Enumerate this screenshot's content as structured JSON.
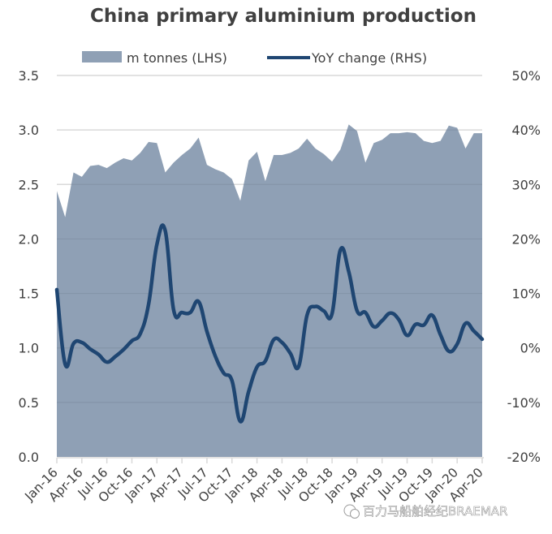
{
  "chart_data": {
    "type": "area+line",
    "title": "China primary aluminium production",
    "legend": {
      "placement": "top-center",
      "entries": [
        {
          "label": "m tonnes (LHS)",
          "kind": "area"
        },
        {
          "label": "YoY change (RHS)",
          "kind": "line"
        }
      ]
    },
    "colors": {
      "area": "#8fa0b5",
      "line": "#1f4672",
      "grid": "#d9d9d9",
      "axis_text": "#404040"
    },
    "left_axis": {
      "label": "m tonnes",
      "ylim": [
        0,
        3.5
      ],
      "ticks": [
        "0.0",
        "0.5",
        "1.0",
        "1.5",
        "2.0",
        "2.5",
        "3.0",
        "3.5"
      ],
      "tick_values": [
        0,
        0.5,
        1.0,
        1.5,
        2.0,
        2.5,
        3.0,
        3.5
      ]
    },
    "right_axis": {
      "label": "YoY change",
      "ylim": [
        -20,
        50
      ],
      "ticks": [
        "-20%",
        "-10%",
        "0%",
        "10%",
        "20%",
        "30%",
        "40%",
        "50%"
      ],
      "tick_values": [
        -20,
        -10,
        0,
        10,
        20,
        30,
        40,
        50
      ]
    },
    "x_tick_labels": [
      "Jan-16",
      "Apr-16",
      "Jul-16",
      "Oct-16",
      "Jan-17",
      "Apr-17",
      "Jul-17",
      "Oct-17",
      "Jan-18",
      "Apr-18",
      "Jul-18",
      "Oct-18",
      "Jan-19",
      "Apr-19",
      "Jul-19",
      "Oct-19",
      "Jan-20",
      "Apr-20"
    ],
    "grid": true,
    "series": [
      {
        "name": "m tonnes (LHS)",
        "axis": "left",
        "type": "area",
        "values": [
          2.44,
          2.2,
          2.61,
          2.57,
          2.67,
          2.68,
          2.65,
          2.7,
          2.74,
          2.72,
          2.79,
          2.89,
          2.88,
          2.61,
          2.7,
          2.77,
          2.83,
          2.93,
          2.68,
          2.64,
          2.61,
          2.55,
          2.35,
          2.72,
          2.8,
          2.53,
          2.77,
          2.77,
          2.79,
          2.83,
          2.92,
          2.83,
          2.78,
          2.71,
          2.82,
          3.05,
          2.99,
          2.7,
          2.88,
          2.91,
          2.97,
          2.97,
          2.98,
          2.97,
          2.9,
          2.88,
          2.9,
          3.04,
          3.02,
          2.83,
          2.97,
          2.97
        ]
      },
      {
        "name": "YoY change (RHS)",
        "axis": "right",
        "type": "line",
        "values": [
          10.7,
          -3.0,
          0.8,
          1.0,
          -0.2,
          -1.2,
          -2.6,
          -1.6,
          -0.3,
          1.3,
          2.6,
          8.0,
          19.0,
          21.5,
          7.0,
          6.5,
          6.5,
          8.5,
          3.0,
          -1.5,
          -4.6,
          -6.0,
          -13.5,
          -8.0,
          -3.5,
          -2.4,
          1.5,
          1.0,
          -1.0,
          -3.4,
          6.0,
          7.6,
          6.8,
          6.3,
          18.0,
          14.0,
          6.8,
          6.5,
          3.9,
          5.0,
          6.4,
          5.2,
          2.3,
          4.3,
          4.2,
          6.0,
          2.4,
          -0.6,
          0.7,
          4.5,
          3.1,
          1.6
        ]
      }
    ]
  },
  "watermark": {
    "text": "百力马船舶经纪BRAEMAR",
    "icon": "wechat-icon"
  }
}
